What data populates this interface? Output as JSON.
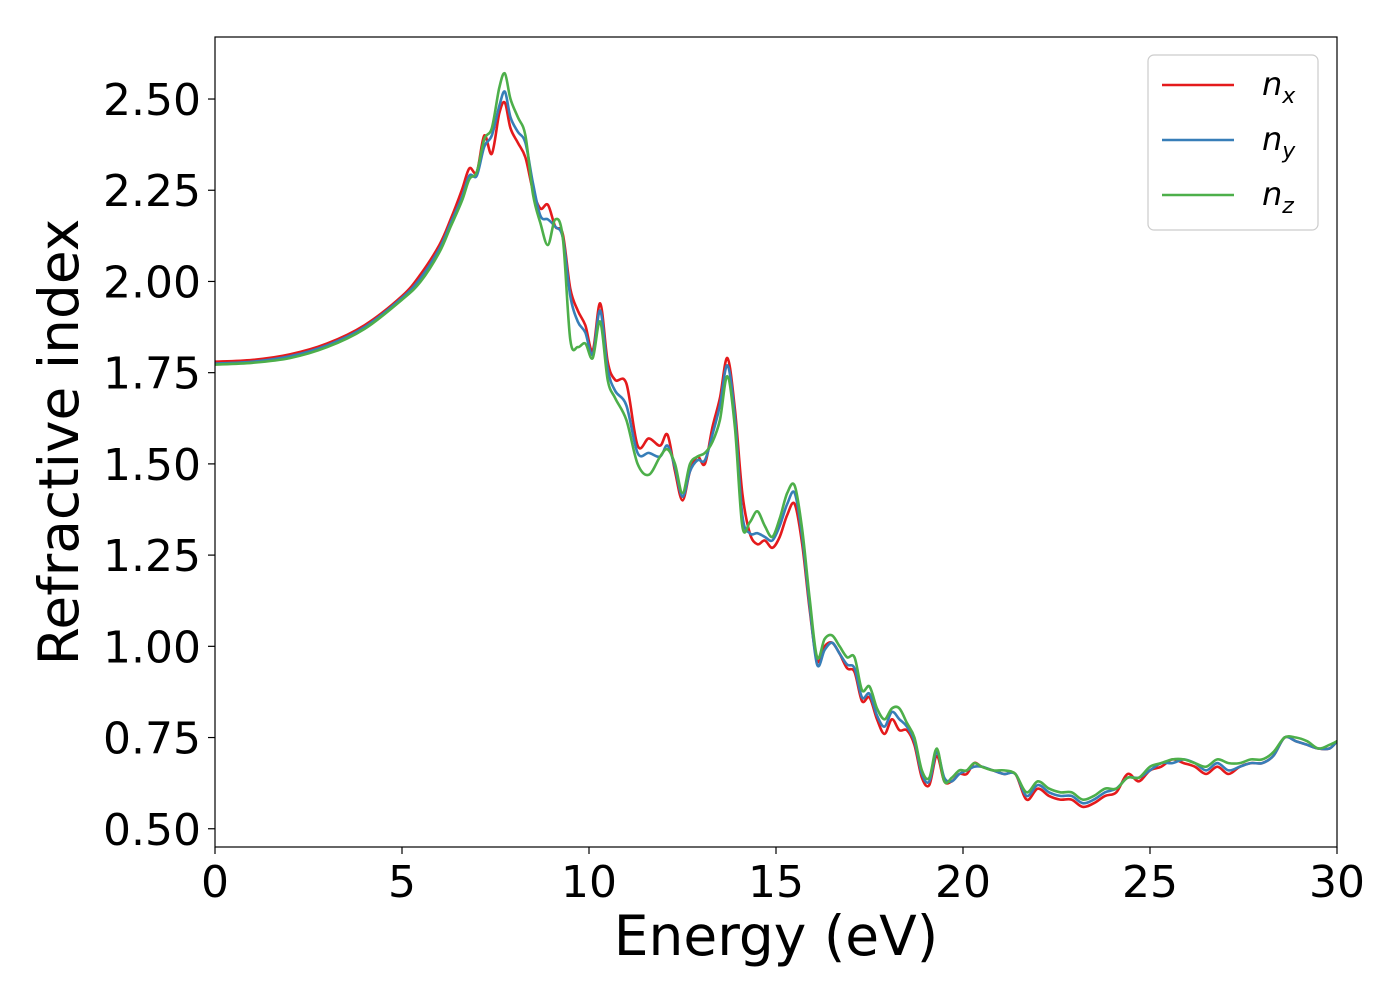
{
  "chart_data": {
    "type": "line",
    "xlabel": "Energy (eV)",
    "ylabel": "Refractive index",
    "xlim": [
      0,
      30
    ],
    "ylim": [
      0.45,
      2.67
    ],
    "xticks": [
      0,
      5,
      10,
      15,
      20,
      25,
      30
    ],
    "yticks": [
      0.5,
      0.75,
      1.0,
      1.25,
      1.5,
      1.75,
      2.0,
      2.25,
      2.5
    ],
    "ytick_labels": [
      "0.50",
      "0.75",
      "1.00",
      "1.25",
      "1.50",
      "1.75",
      "2.00",
      "2.25",
      "2.50"
    ],
    "grid": false,
    "legend_position": "top-right",
    "series": [
      {
        "name": "n",
        "subscript": "x",
        "color": "#e41a1c",
        "x": [
          0,
          1,
          2,
          3,
          4,
          5,
          5.5,
          6,
          6.3,
          6.6,
          6.8,
          7.0,
          7.2,
          7.4,
          7.6,
          7.75,
          7.9,
          8.1,
          8.3,
          8.5,
          8.7,
          8.9,
          9.1,
          9.3,
          9.5,
          9.7,
          9.9,
          10.1,
          10.3,
          10.5,
          10.7,
          11.0,
          11.3,
          11.6,
          11.9,
          12.1,
          12.3,
          12.5,
          12.7,
          12.9,
          13.1,
          13.3,
          13.5,
          13.7,
          13.9,
          14.1,
          14.3,
          14.5,
          14.7,
          14.9,
          15.1,
          15.3,
          15.5,
          15.7,
          15.9,
          16.1,
          16.3,
          16.5,
          16.7,
          16.9,
          17.1,
          17.3,
          17.5,
          17.7,
          17.9,
          18.1,
          18.3,
          18.5,
          18.7,
          18.9,
          19.1,
          19.3,
          19.5,
          19.7,
          19.9,
          20.1,
          20.3,
          20.5,
          20.8,
          21.1,
          21.4,
          21.7,
          22.0,
          22.3,
          22.6,
          22.9,
          23.2,
          23.5,
          23.8,
          24.1,
          24.4,
          24.7,
          25.0,
          25.3,
          25.6,
          25.9,
          26.2,
          26.5,
          26.8,
          27.1,
          27.4,
          27.7,
          28.0,
          28.3,
          28.6,
          28.9,
          29.2,
          29.5,
          29.8,
          30.0
        ],
        "y": [
          1.78,
          1.785,
          1.8,
          1.83,
          1.88,
          1.96,
          2.02,
          2.1,
          2.17,
          2.25,
          2.31,
          2.3,
          2.4,
          2.35,
          2.46,
          2.49,
          2.42,
          2.38,
          2.34,
          2.25,
          2.2,
          2.21,
          2.15,
          2.13,
          1.98,
          1.92,
          1.88,
          1.81,
          1.94,
          1.78,
          1.73,
          1.72,
          1.55,
          1.57,
          1.55,
          1.58,
          1.48,
          1.4,
          1.48,
          1.52,
          1.5,
          1.6,
          1.68,
          1.79,
          1.65,
          1.42,
          1.31,
          1.28,
          1.29,
          1.27,
          1.3,
          1.36,
          1.39,
          1.28,
          1.1,
          0.96,
          1.0,
          1.01,
          0.98,
          0.94,
          0.93,
          0.85,
          0.86,
          0.8,
          0.76,
          0.8,
          0.77,
          0.77,
          0.73,
          0.64,
          0.62,
          0.7,
          0.63,
          0.63,
          0.65,
          0.65,
          0.68,
          0.67,
          0.66,
          0.65,
          0.65,
          0.58,
          0.61,
          0.59,
          0.58,
          0.58,
          0.56,
          0.57,
          0.59,
          0.6,
          0.65,
          0.63,
          0.66,
          0.67,
          0.69,
          0.68,
          0.67,
          0.65,
          0.67,
          0.65,
          0.67,
          0.68,
          0.68,
          0.7,
          0.75,
          0.74,
          0.73,
          0.72,
          0.72,
          0.74
        ]
      },
      {
        "name": "n",
        "subscript": "y",
        "color": "#377eb8",
        "x": [
          0,
          1,
          2,
          3,
          4,
          5,
          5.5,
          6,
          6.3,
          6.6,
          6.8,
          7.0,
          7.2,
          7.4,
          7.6,
          7.75,
          7.9,
          8.1,
          8.3,
          8.5,
          8.7,
          8.9,
          9.1,
          9.3,
          9.5,
          9.7,
          9.9,
          10.1,
          10.3,
          10.5,
          10.7,
          11.0,
          11.3,
          11.6,
          11.9,
          12.1,
          12.3,
          12.5,
          12.7,
          12.9,
          13.1,
          13.3,
          13.5,
          13.7,
          13.9,
          14.1,
          14.3,
          14.5,
          14.7,
          14.9,
          15.1,
          15.3,
          15.5,
          15.7,
          15.9,
          16.1,
          16.3,
          16.5,
          16.7,
          16.9,
          17.1,
          17.3,
          17.5,
          17.7,
          17.9,
          18.1,
          18.3,
          18.5,
          18.7,
          18.9,
          19.1,
          19.3,
          19.5,
          19.7,
          19.9,
          20.1,
          20.3,
          20.5,
          20.8,
          21.1,
          21.4,
          21.7,
          22.0,
          22.3,
          22.6,
          22.9,
          23.2,
          23.5,
          23.8,
          24.1,
          24.4,
          24.7,
          25.0,
          25.3,
          25.6,
          25.9,
          26.2,
          26.5,
          26.8,
          27.1,
          27.4,
          27.7,
          28.0,
          28.3,
          28.6,
          28.9,
          29.2,
          29.5,
          29.8,
          30.0
        ],
        "y": [
          1.775,
          1.78,
          1.795,
          1.825,
          1.875,
          1.955,
          2.01,
          2.09,
          2.16,
          2.23,
          2.29,
          2.29,
          2.37,
          2.4,
          2.48,
          2.52,
          2.45,
          2.41,
          2.38,
          2.27,
          2.18,
          2.17,
          2.15,
          2.12,
          1.96,
          1.89,
          1.86,
          1.8,
          1.92,
          1.76,
          1.7,
          1.66,
          1.53,
          1.53,
          1.52,
          1.55,
          1.49,
          1.41,
          1.48,
          1.51,
          1.51,
          1.58,
          1.66,
          1.77,
          1.63,
          1.36,
          1.31,
          1.31,
          1.3,
          1.29,
          1.33,
          1.39,
          1.42,
          1.3,
          1.11,
          0.95,
          0.99,
          1.01,
          0.98,
          0.95,
          0.94,
          0.86,
          0.87,
          0.81,
          0.78,
          0.82,
          0.8,
          0.78,
          0.74,
          0.65,
          0.63,
          0.71,
          0.64,
          0.63,
          0.65,
          0.66,
          0.67,
          0.67,
          0.66,
          0.65,
          0.65,
          0.59,
          0.62,
          0.6,
          0.59,
          0.59,
          0.57,
          0.58,
          0.6,
          0.61,
          0.64,
          0.64,
          0.66,
          0.68,
          0.68,
          0.69,
          0.68,
          0.66,
          0.68,
          0.66,
          0.67,
          0.68,
          0.68,
          0.7,
          0.75,
          0.74,
          0.73,
          0.72,
          0.72,
          0.74
        ]
      },
      {
        "name": "n",
        "subscript": "z",
        "color": "#4daf4a",
        "x": [
          0,
          1,
          2,
          3,
          4,
          5,
          5.5,
          6,
          6.3,
          6.6,
          6.8,
          7.0,
          7.2,
          7.4,
          7.6,
          7.75,
          7.9,
          8.1,
          8.3,
          8.5,
          8.7,
          8.9,
          9.1,
          9.3,
          9.5,
          9.7,
          9.9,
          10.1,
          10.3,
          10.5,
          10.7,
          11.0,
          11.3,
          11.6,
          11.9,
          12.1,
          12.3,
          12.5,
          12.7,
          12.9,
          13.1,
          13.3,
          13.5,
          13.7,
          13.9,
          14.1,
          14.3,
          14.5,
          14.7,
          14.9,
          15.1,
          15.3,
          15.5,
          15.7,
          15.9,
          16.1,
          16.3,
          16.5,
          16.7,
          16.9,
          17.1,
          17.3,
          17.5,
          17.7,
          17.9,
          18.1,
          18.3,
          18.5,
          18.7,
          18.9,
          19.1,
          19.3,
          19.5,
          19.7,
          19.9,
          20.1,
          20.3,
          20.5,
          20.8,
          21.1,
          21.4,
          21.7,
          22.0,
          22.3,
          22.6,
          22.9,
          23.2,
          23.5,
          23.8,
          24.1,
          24.4,
          24.7,
          25.0,
          25.3,
          25.6,
          25.9,
          26.2,
          26.5,
          26.8,
          27.1,
          27.4,
          27.7,
          28.0,
          28.3,
          28.6,
          28.9,
          29.2,
          29.5,
          29.8,
          30.0
        ],
        "y": [
          1.772,
          1.777,
          1.79,
          1.82,
          1.87,
          1.95,
          2.0,
          2.08,
          2.15,
          2.22,
          2.28,
          2.3,
          2.39,
          2.42,
          2.53,
          2.57,
          2.5,
          2.45,
          2.4,
          2.24,
          2.16,
          2.1,
          2.17,
          2.12,
          1.84,
          1.82,
          1.83,
          1.79,
          1.89,
          1.73,
          1.68,
          1.62,
          1.5,
          1.47,
          1.52,
          1.54,
          1.5,
          1.42,
          1.5,
          1.52,
          1.53,
          1.56,
          1.62,
          1.74,
          1.6,
          1.33,
          1.34,
          1.37,
          1.33,
          1.3,
          1.35,
          1.42,
          1.44,
          1.32,
          1.13,
          0.97,
          1.02,
          1.03,
          1.0,
          0.97,
          0.97,
          0.88,
          0.89,
          0.83,
          0.8,
          0.83,
          0.83,
          0.79,
          0.75,
          0.66,
          0.64,
          0.72,
          0.63,
          0.64,
          0.66,
          0.66,
          0.68,
          0.67,
          0.66,
          0.66,
          0.65,
          0.6,
          0.63,
          0.61,
          0.6,
          0.6,
          0.58,
          0.59,
          0.61,
          0.61,
          0.64,
          0.64,
          0.67,
          0.68,
          0.69,
          0.69,
          0.68,
          0.67,
          0.69,
          0.68,
          0.68,
          0.69,
          0.69,
          0.71,
          0.75,
          0.75,
          0.74,
          0.72,
          0.73,
          0.74
        ]
      }
    ]
  }
}
